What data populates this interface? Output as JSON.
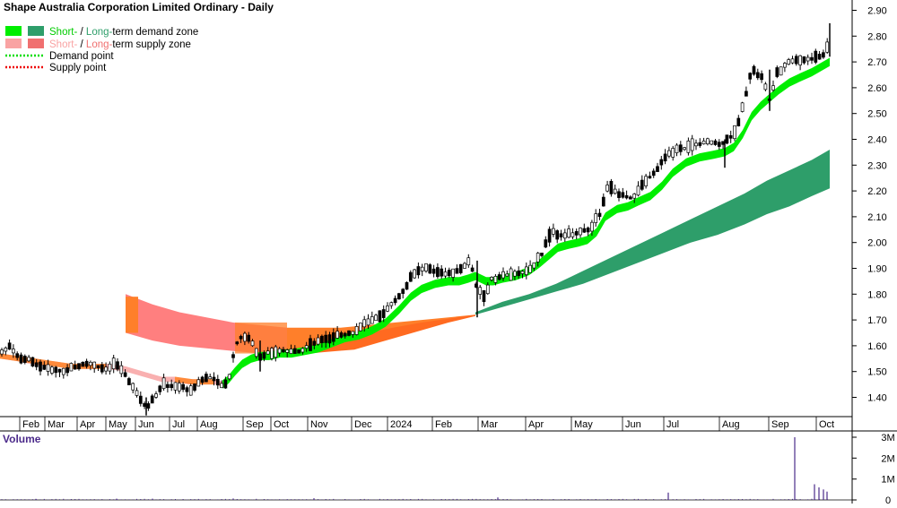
{
  "chart_data": {
    "type": "candlestick",
    "title": "Shape Australia Corporation Limited Ordinary - Daily",
    "legend": [
      {
        "short_label": "Short-",
        "sep": " / ",
        "long_label": "Long-",
        "rest": "term demand zone",
        "short_color": "#00ee00",
        "long_color": "#2e9e6a"
      },
      {
        "short_label": "Short-",
        "sep": " / ",
        "long_label": "Long-",
        "rest": "term supply zone",
        "short_color": "#f9a3a3",
        "long_color": "#f07070"
      },
      {
        "label": "Demand point",
        "color": "#00dd00"
      },
      {
        "label": "Supply point",
        "color": "#ee0000"
      }
    ],
    "x_ticks": [
      "Feb",
      "Mar",
      "Apr",
      "May",
      "Jun",
      "Jul",
      "Aug",
      "Sep",
      "Oct",
      "Nov",
      "Dec",
      "2024",
      "Feb",
      "Mar",
      "Apr",
      "May",
      "Jun",
      "Jul",
      "Aug",
      "Sep",
      "Oct"
    ],
    "y_ticks": [
      "2.90",
      "2.80",
      "2.70",
      "2.60",
      "2.50",
      "2.40",
      "2.30",
      "2.20",
      "2.10",
      "2.00",
      "1.90",
      "1.80",
      "1.70",
      "1.60",
      "1.50",
      "1.40"
    ],
    "ylim": [
      1.32,
      2.93
    ],
    "price_path": [
      [
        0,
        1.57
      ],
      [
        12,
        1.6
      ],
      [
        18,
        1.56
      ],
      [
        30,
        1.55
      ],
      [
        45,
        1.52
      ],
      [
        58,
        1.51
      ],
      [
        70,
        1.5
      ],
      [
        85,
        1.52
      ],
      [
        100,
        1.53
      ],
      [
        118,
        1.51
      ],
      [
        128,
        1.53
      ],
      [
        138,
        1.5
      ],
      [
        146,
        1.45
      ],
      [
        155,
        1.4
      ],
      [
        163,
        1.36
      ],
      [
        172,
        1.4
      ],
      [
        182,
        1.45
      ],
      [
        195,
        1.44
      ],
      [
        205,
        1.44
      ],
      [
        212,
        1.42
      ],
      [
        222,
        1.46
      ],
      [
        232,
        1.48
      ],
      [
        240,
        1.47
      ],
      [
        248,
        1.44
      ],
      [
        256,
        1.48
      ],
      [
        262,
        1.6
      ],
      [
        270,
        1.64
      ],
      [
        280,
        1.62
      ],
      [
        288,
        1.55
      ],
      [
        296,
        1.57
      ],
      [
        305,
        1.58
      ],
      [
        315,
        1.58
      ],
      [
        325,
        1.58
      ],
      [
        335,
        1.58
      ],
      [
        345,
        1.6
      ],
      [
        355,
        1.62
      ],
      [
        368,
        1.63
      ],
      [
        380,
        1.64
      ],
      [
        395,
        1.65
      ],
      [
        405,
        1.68
      ],
      [
        415,
        1.7
      ],
      [
        425,
        1.72
      ],
      [
        435,
        1.76
      ],
      [
        448,
        1.8
      ],
      [
        458,
        1.86
      ],
      [
        466,
        1.89
      ],
      [
        476,
        1.9
      ],
      [
        490,
        1.88
      ],
      [
        505,
        1.88
      ],
      [
        515,
        1.9
      ],
      [
        524,
        1.93
      ],
      [
        532,
        1.82
      ],
      [
        540,
        1.79
      ],
      [
        548,
        1.86
      ],
      [
        560,
        1.87
      ],
      [
        575,
        1.88
      ],
      [
        590,
        1.89
      ],
      [
        605,
        1.96
      ],
      [
        615,
        2.05
      ],
      [
        625,
        2.03
      ],
      [
        640,
        2.03
      ],
      [
        655,
        2.05
      ],
      [
        668,
        2.1
      ],
      [
        678,
        2.22
      ],
      [
        690,
        2.19
      ],
      [
        705,
        2.17
      ],
      [
        718,
        2.23
      ],
      [
        732,
        2.28
      ],
      [
        745,
        2.35
      ],
      [
        760,
        2.36
      ],
      [
        775,
        2.38
      ],
      [
        790,
        2.39
      ],
      [
        805,
        2.38
      ],
      [
        818,
        2.42
      ],
      [
        828,
        2.52
      ],
      [
        838,
        2.67
      ],
      [
        850,
        2.64
      ],
      [
        858,
        2.55
      ],
      [
        866,
        2.65
      ],
      [
        878,
        2.7
      ],
      [
        890,
        2.71
      ],
      [
        902,
        2.71
      ],
      [
        912,
        2.72
      ],
      [
        920,
        2.73
      ],
      [
        925,
        2.79
      ]
    ],
    "short_demand": [
      [
        248,
        1.45
      ],
      [
        255,
        1.47
      ],
      [
        262,
        1.5
      ],
      [
        270,
        1.53
      ],
      [
        280,
        1.55
      ],
      [
        290,
        1.56
      ],
      [
        300,
        1.56
      ],
      [
        312,
        1.57
      ],
      [
        325,
        1.57
      ],
      [
        340,
        1.58
      ],
      [
        355,
        1.59
      ],
      [
        370,
        1.61
      ],
      [
        385,
        1.63
      ],
      [
        400,
        1.64
      ],
      [
        415,
        1.66
      ],
      [
        430,
        1.69
      ],
      [
        445,
        1.74
      ],
      [
        458,
        1.79
      ],
      [
        470,
        1.82
      ],
      [
        485,
        1.84
      ],
      [
        500,
        1.85
      ],
      [
        512,
        1.85
      ],
      [
        522,
        1.86
      ],
      [
        530,
        1.87
      ],
      [
        536,
        1.86
      ],
      [
        542,
        1.85
      ],
      [
        550,
        1.85
      ],
      [
        560,
        1.86
      ],
      [
        575,
        1.87
      ],
      [
        590,
        1.89
      ],
      [
        602,
        1.92
      ],
      [
        612,
        1.95
      ],
      [
        622,
        1.98
      ],
      [
        632,
        1.99
      ],
      [
        645,
        2.0
      ],
      [
        655,
        2.01
      ],
      [
        665,
        2.04
      ],
      [
        675,
        2.1
      ],
      [
        688,
        2.13
      ],
      [
        700,
        2.14
      ],
      [
        712,
        2.16
      ],
      [
        725,
        2.18
      ],
      [
        738,
        2.22
      ],
      [
        750,
        2.27
      ],
      [
        765,
        2.31
      ],
      [
        780,
        2.33
      ],
      [
        795,
        2.34
      ],
      [
        808,
        2.35
      ],
      [
        818,
        2.37
      ],
      [
        828,
        2.42
      ],
      [
        838,
        2.49
      ],
      [
        848,
        2.53
      ],
      [
        858,
        2.56
      ],
      [
        868,
        2.59
      ],
      [
        880,
        2.62
      ],
      [
        892,
        2.64
      ],
      [
        905,
        2.66
      ],
      [
        915,
        2.68
      ],
      [
        925,
        2.7
      ]
    ],
    "short_demand_width": 0.032,
    "long_demand_upper": [
      [
        530,
        1.73
      ],
      [
        560,
        1.77
      ],
      [
        590,
        1.8
      ],
      [
        620,
        1.84
      ],
      [
        650,
        1.89
      ],
      [
        680,
        1.94
      ],
      [
        710,
        1.99
      ],
      [
        740,
        2.04
      ],
      [
        770,
        2.09
      ],
      [
        800,
        2.14
      ],
      [
        830,
        2.19
      ],
      [
        855,
        2.24
      ],
      [
        880,
        2.28
      ],
      [
        905,
        2.32
      ],
      [
        925,
        2.36
      ]
    ],
    "long_demand_lower": [
      [
        530,
        1.72
      ],
      [
        560,
        1.75
      ],
      [
        590,
        1.78
      ],
      [
        620,
        1.81
      ],
      [
        650,
        1.84
      ],
      [
        680,
        1.88
      ],
      [
        710,
        1.92
      ],
      [
        740,
        1.96
      ],
      [
        770,
        2.0
      ],
      [
        800,
        2.03
      ],
      [
        830,
        2.07
      ],
      [
        855,
        2.11
      ],
      [
        880,
        2.14
      ],
      [
        905,
        2.18
      ],
      [
        925,
        2.21
      ]
    ],
    "short_supply": [
      [
        0,
        1.56
      ],
      [
        20,
        1.55
      ],
      [
        40,
        1.535
      ],
      [
        60,
        1.53
      ],
      [
        80,
        1.52
      ],
      [
        100,
        1.52
      ],
      [
        120,
        1.52
      ],
      [
        140,
        1.51
      ],
      [
        160,
        1.49
      ],
      [
        180,
        1.47
      ],
      [
        195,
        1.47
      ],
      [
        210,
        1.46
      ],
      [
        225,
        1.46
      ],
      [
        240,
        1.46
      ],
      [
        248,
        1.45
      ]
    ],
    "short_supply_width": 0.02,
    "long_supply_upper": [
      [
        140,
        1.8
      ],
      [
        170,
        1.76
      ],
      [
        200,
        1.73
      ],
      [
        230,
        1.71
      ],
      [
        260,
        1.69
      ],
      [
        290,
        1.68
      ],
      [
        320,
        1.67
      ],
      [
        350,
        1.67
      ],
      [
        380,
        1.67
      ],
      [
        410,
        1.68
      ],
      [
        440,
        1.69
      ],
      [
        470,
        1.7
      ],
      [
        500,
        1.71
      ],
      [
        530,
        1.72
      ]
    ],
    "long_supply_lower": [
      [
        140,
        1.65
      ],
      [
        170,
        1.62
      ],
      [
        200,
        1.6
      ],
      [
        230,
        1.59
      ],
      [
        260,
        1.58
      ],
      [
        290,
        1.57
      ],
      [
        320,
        1.57
      ],
      [
        350,
        1.58
      ],
      [
        380,
        1.6
      ],
      [
        410,
        1.62
      ],
      [
        440,
        1.65
      ],
      [
        470,
        1.68
      ],
      [
        500,
        1.7
      ],
      [
        530,
        1.72
      ]
    ],
    "volume": {
      "title": "Volume",
      "y_ticks": [
        "3M",
        "2M",
        "1M",
        "0"
      ],
      "ylim": [
        0,
        3.2
      ],
      "baseline": 0.02,
      "spikes": [
        [
          40,
          0.05
        ],
        [
          130,
          0.06
        ],
        [
          170,
          0.06
        ],
        [
          260,
          0.07
        ],
        [
          350,
          0.08
        ],
        [
          555,
          0.12
        ],
        [
          745,
          0.35
        ],
        [
          886,
          3.0
        ],
        [
          908,
          0.75
        ],
        [
          913,
          0.6
        ],
        [
          918,
          0.5
        ],
        [
          922,
          0.4
        ]
      ]
    }
  }
}
